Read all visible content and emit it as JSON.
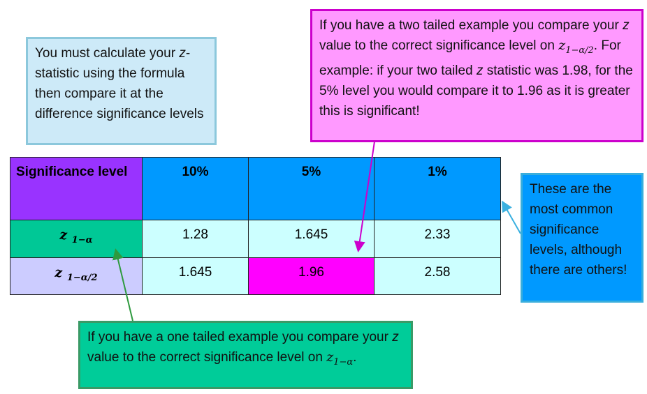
{
  "callouts": {
    "formula": [
      "You must calculate your ",
      "z",
      "-statistic using the formula then compare it at the difference significance levels"
    ],
    "two_tailed": [
      "If you have a two tailed example you compare your ",
      "z",
      " value to  the correct significance level on ",
      "z",
      "1−α/2",
      ". For example: if your two tailed ",
      "z",
      " statistic was 1.98, for the 5% level you would compare it to 1.96 as it is greater this is significant!"
    ],
    "common": "These are the most common significance levels, although there are others!",
    "one_tailed": [
      "If you have a one tailed example you compare your ",
      "z",
      " value to the correct significance level on ",
      "z",
      "1−α",
      "."
    ]
  },
  "table": {
    "header": [
      "Significance level",
      "10%",
      "5%",
      "1%"
    ],
    "rows": [
      [
        {
          "symbol": "z",
          "subscript": "1−α"
        },
        "1.28",
        "1.645",
        "2.33"
      ],
      [
        {
          "symbol": "z",
          "subscript": "1−α/2"
        },
        "1.645",
        "1.96",
        "2.58"
      ]
    ]
  }
}
